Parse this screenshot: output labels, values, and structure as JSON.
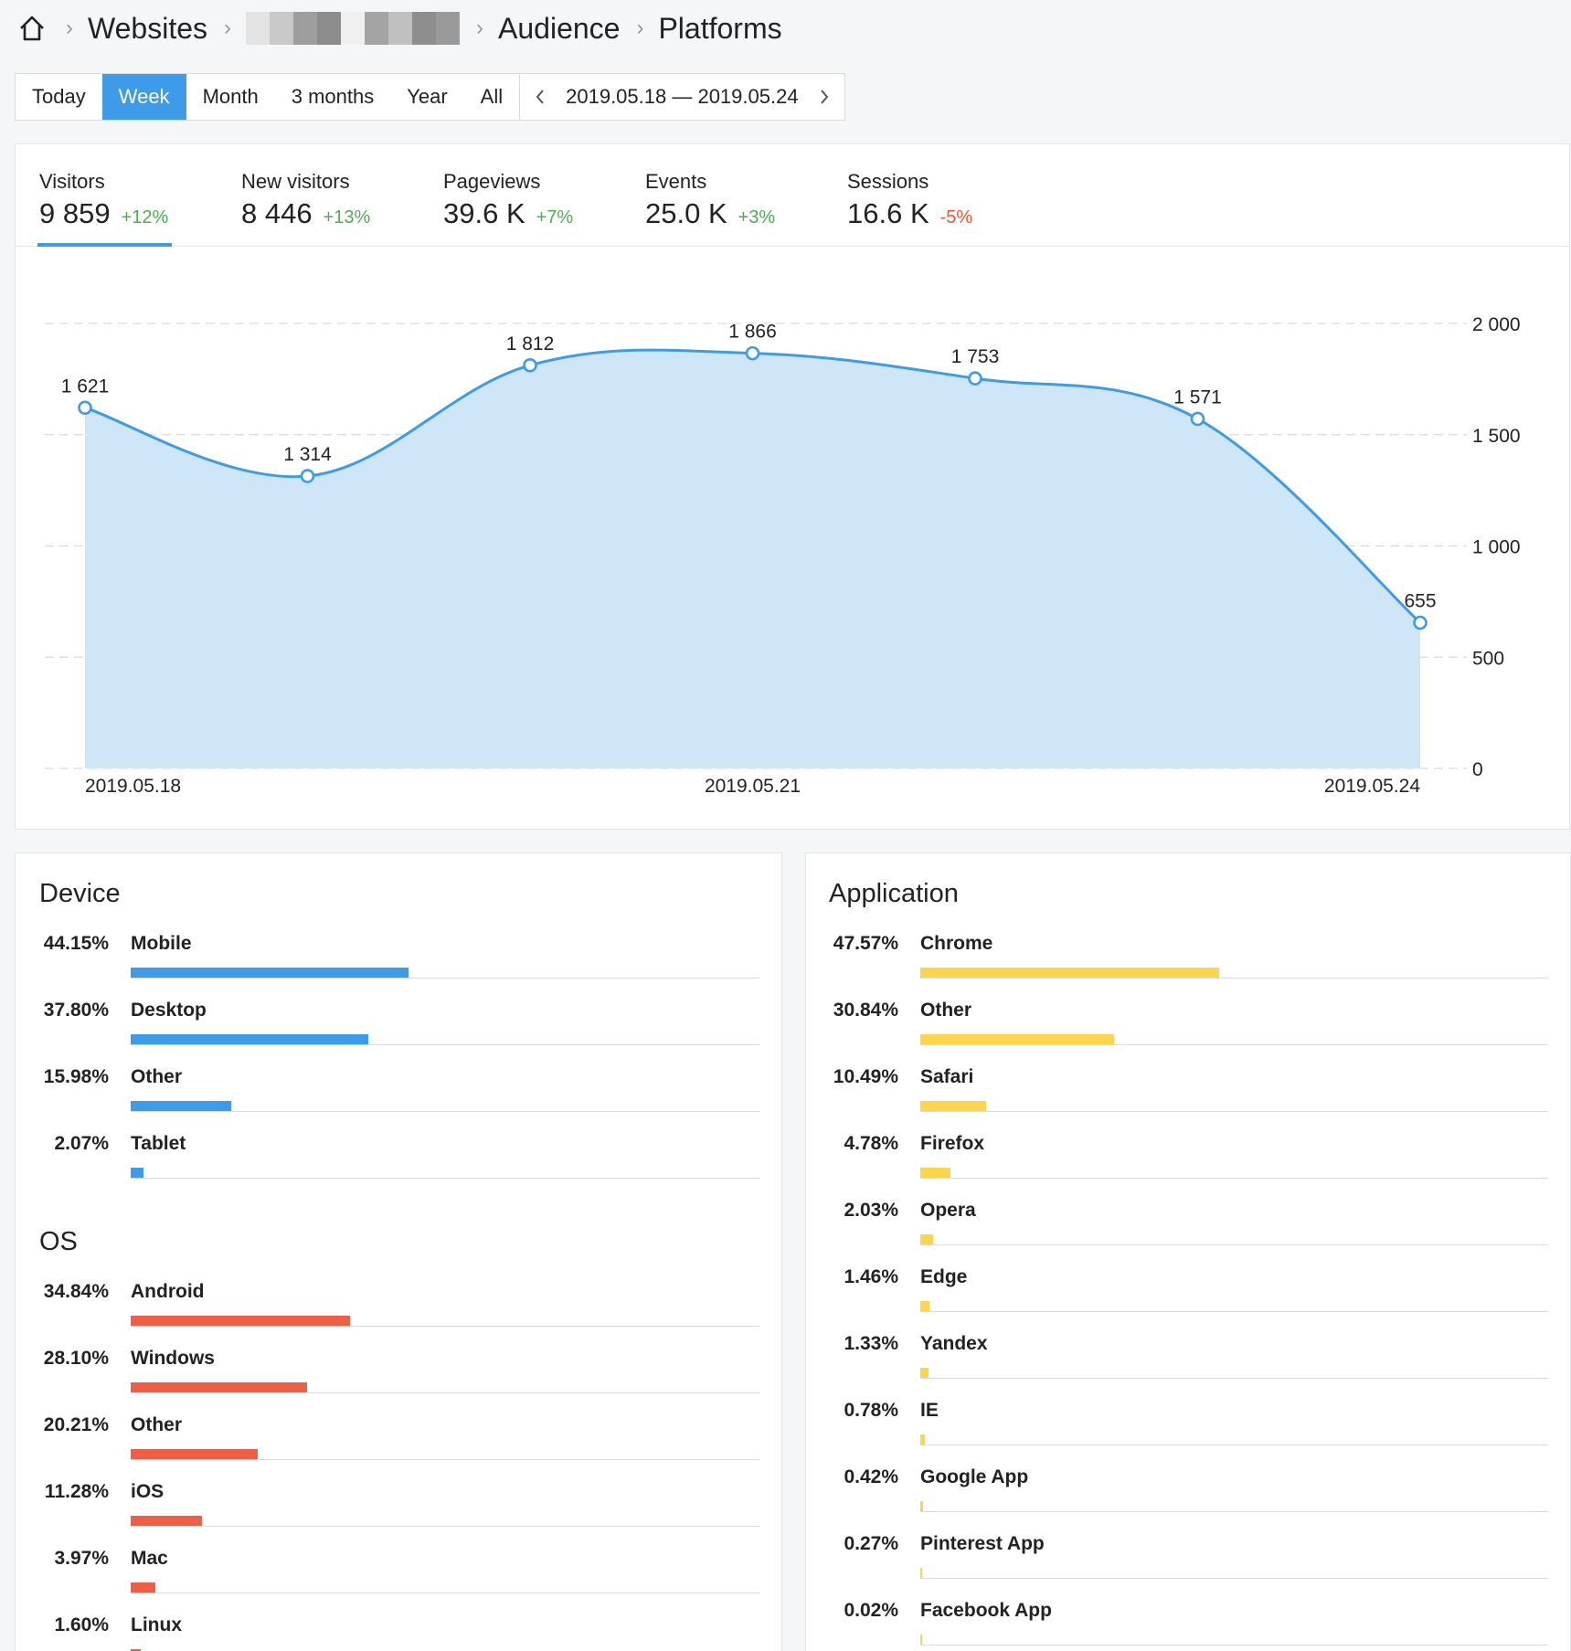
{
  "breadcrumb": {
    "items": [
      "Websites",
      "Audience",
      "Platforms"
    ]
  },
  "period": {
    "buttons": [
      "Today",
      "Week",
      "Month",
      "3 months",
      "Year",
      "All"
    ],
    "active": "Week",
    "range": "2019.05.18 — 2019.05.24"
  },
  "metrics": [
    {
      "label": "Visitors",
      "value": "9 859",
      "change": "+12%",
      "trend": "up"
    },
    {
      "label": "New visitors",
      "value": "8 446",
      "change": "+13%",
      "trend": "up"
    },
    {
      "label": "Pageviews",
      "value": "39.6 K",
      "change": "+7%",
      "trend": "up"
    },
    {
      "label": "Events",
      "value": "25.0 K",
      "change": "+3%",
      "trend": "up"
    },
    {
      "label": "Sessions",
      "value": "16.6 K",
      "change": "-5%",
      "trend": "down"
    }
  ],
  "colors": {
    "accent": "#3d9be9",
    "area": "#cfe6f9",
    "positive": "#4caf50",
    "negative": "#f0542d",
    "device_bar": "#3d9be9",
    "os_bar": "#ef5f45",
    "app_bar": "#fcd54a"
  },
  "chart_data": {
    "type": "area",
    "x": [
      "2019.05.18",
      "2019.05.19",
      "2019.05.20",
      "2019.05.21",
      "2019.05.22",
      "2019.05.23",
      "2019.05.24"
    ],
    "values": [
      1621,
      1314,
      1812,
      1866,
      1753,
      1571,
      655
    ],
    "value_labels": [
      "1 621",
      "1 314",
      "1 812",
      "1 866",
      "1 753",
      "1 571",
      "655"
    ],
    "x_tick_labels": [
      "2019.05.18",
      "2019.05.21",
      "2019.05.24"
    ],
    "y_ticks": [
      0,
      500,
      1000,
      1500,
      2000
    ],
    "y_tick_labels": [
      "0",
      "500",
      "1 000",
      "1 500",
      "2 000"
    ],
    "ylim": [
      0,
      2000
    ],
    "grid": true,
    "y_axis_side": "right"
  },
  "device": {
    "title": "Device",
    "rows": [
      {
        "pct": "44.15%",
        "name": "Mobile",
        "value": 44.15
      },
      {
        "pct": "37.80%",
        "name": "Desktop",
        "value": 37.8
      },
      {
        "pct": "15.98%",
        "name": "Other",
        "value": 15.98
      },
      {
        "pct": "2.07%",
        "name": "Tablet",
        "value": 2.07
      }
    ]
  },
  "os": {
    "title": "OS",
    "rows": [
      {
        "pct": "34.84%",
        "name": "Android",
        "value": 34.84
      },
      {
        "pct": "28.10%",
        "name": "Windows",
        "value": 28.1
      },
      {
        "pct": "20.21%",
        "name": "Other",
        "value": 20.21
      },
      {
        "pct": "11.28%",
        "name": "iOS",
        "value": 11.28
      },
      {
        "pct": "3.97%",
        "name": "Mac",
        "value": 3.97
      },
      {
        "pct": "1.60%",
        "name": "Linux",
        "value": 1.6
      }
    ]
  },
  "application": {
    "title": "Application",
    "rows": [
      {
        "pct": "47.57%",
        "name": "Chrome",
        "value": 47.57
      },
      {
        "pct": "30.84%",
        "name": "Other",
        "value": 30.84
      },
      {
        "pct": "10.49%",
        "name": "Safari",
        "value": 10.49
      },
      {
        "pct": "4.78%",
        "name": "Firefox",
        "value": 4.78
      },
      {
        "pct": "2.03%",
        "name": "Opera",
        "value": 2.03
      },
      {
        "pct": "1.46%",
        "name": "Edge",
        "value": 1.46
      },
      {
        "pct": "1.33%",
        "name": "Yandex",
        "value": 1.33
      },
      {
        "pct": "0.78%",
        "name": "IE",
        "value": 0.78
      },
      {
        "pct": "0.42%",
        "name": "Google App",
        "value": 0.42
      },
      {
        "pct": "0.27%",
        "name": "Pinterest App",
        "value": 0.27
      },
      {
        "pct": "0.02%",
        "name": "Facebook App",
        "value": 0.02
      }
    ]
  }
}
